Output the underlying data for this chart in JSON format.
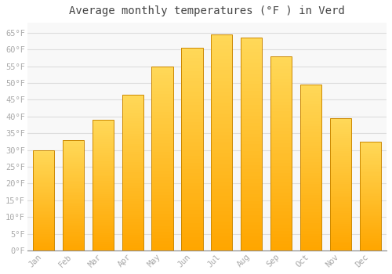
{
  "title": "Average monthly temperatures (°F ) in Verd",
  "months": [
    "Jan",
    "Feb",
    "Mar",
    "Apr",
    "May",
    "Jun",
    "Jul",
    "Aug",
    "Sep",
    "Oct",
    "Nov",
    "Dec"
  ],
  "values": [
    30,
    33,
    39,
    46.5,
    55,
    60.5,
    64.5,
    63.5,
    58,
    49.5,
    39.5,
    32.5
  ],
  "bar_color_center": "#FFD966",
  "bar_color_edge": "#FFA500",
  "bar_outline_color": "#CC8800",
  "background_color": "#ffffff",
  "plot_bg_color": "#f8f8f8",
  "grid_color": "#dddddd",
  "ylim": [
    0,
    68
  ],
  "yticks": [
    0,
    5,
    10,
    15,
    20,
    25,
    30,
    35,
    40,
    45,
    50,
    55,
    60,
    65
  ],
  "ytick_labels": [
    "0°F",
    "5°F",
    "10°F",
    "15°F",
    "20°F",
    "25°F",
    "30°F",
    "35°F",
    "40°F",
    "45°F",
    "50°F",
    "55°F",
    "60°F",
    "65°F"
  ],
  "title_fontsize": 10,
  "tick_fontsize": 7.5,
  "tick_font_color": "#aaaaaa",
  "bar_width": 0.72
}
